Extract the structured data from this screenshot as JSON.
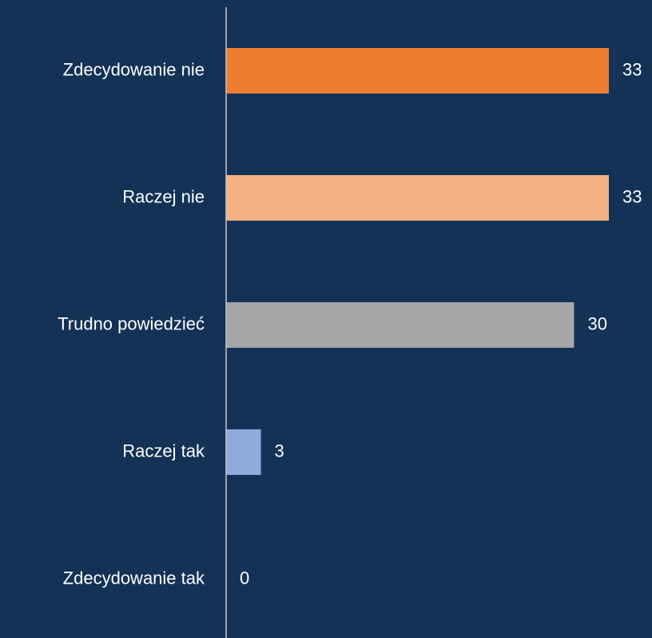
{
  "chart_data": {
    "type": "bar",
    "orientation": "horizontal",
    "categories": [
      "Zdecydowanie nie",
      "Raczej nie",
      "Trudno powiedzieć",
      "Raczej tak",
      "Zdecydowanie tak"
    ],
    "values": [
      33,
      33,
      30,
      3,
      0
    ],
    "colors": [
      "#ed7d31",
      "#f4b183",
      "#a6a6a6",
      "#8faadc",
      "#4472c4"
    ]
  }
}
